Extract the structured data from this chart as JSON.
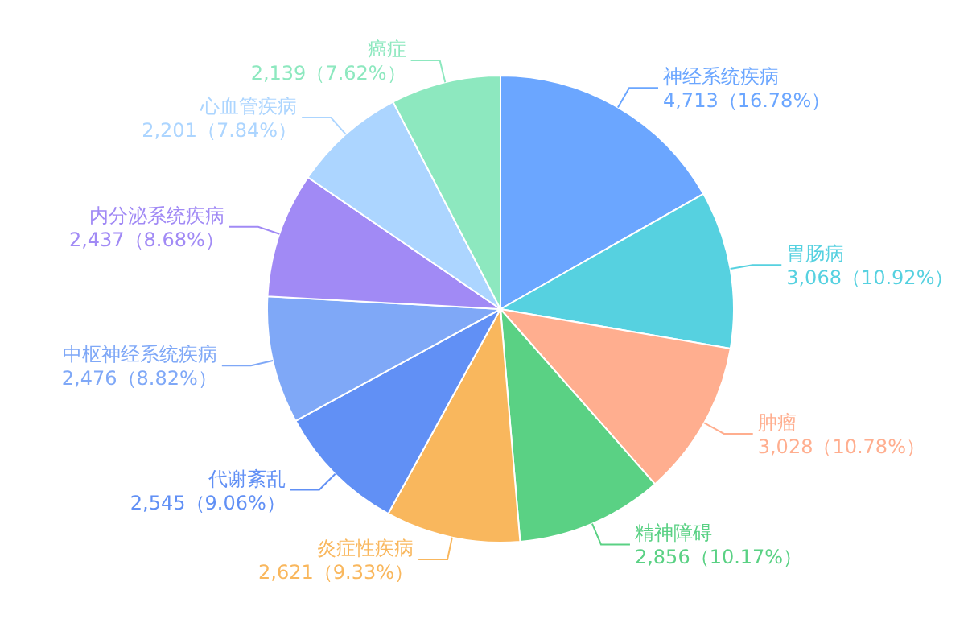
{
  "chart_data": {
    "type": "pie",
    "categories": [
      "神经系统疾病",
      "胃肠病",
      "肿瘤",
      "精神障碍",
      "炎症性疾病",
      "代谢紊乱",
      "中枢神经系统疾病",
      "内分泌系统疾病",
      "心血管疾病",
      "癌症"
    ],
    "values": [
      4713,
      3068,
      3028,
      2856,
      2621,
      2545,
      2476,
      2437,
      2201,
      2139
    ],
    "value_labels": [
      "4,713（16.78%）",
      "3,068（10.92%）",
      "3,028（10.78%）",
      "2,856（10.17%）",
      "2,621（9.33%）",
      "2,545（9.06%）",
      "2,476（8.82%）",
      "2,437（8.68%）",
      "2,201（7.84%）",
      "2,139（7.62%）"
    ],
    "colors": [
      "#6ba6ff",
      "#56d1e0",
      "#ffae8f",
      "#5ad184",
      "#f9b75d",
      "#6190f5",
      "#7fa8f7",
      "#a18af5",
      "#acd5ff",
      "#8de8bf"
    ],
    "legend": false
  }
}
